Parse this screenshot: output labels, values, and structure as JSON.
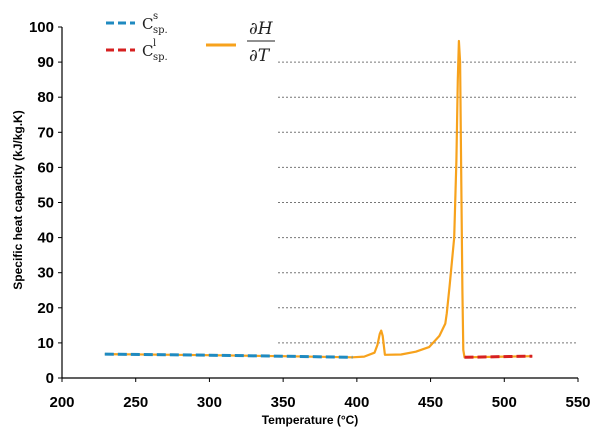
{
  "chart_data": {
    "type": "line",
    "title": "",
    "xlabel": "Temperature (°C)",
    "ylabel": "Specific heat capacity (kJ/kg.K)",
    "xlim": [
      200,
      550
    ],
    "ylim": [
      0,
      100
    ],
    "xticks": [
      200,
      250,
      300,
      350,
      400,
      450,
      500,
      550
    ],
    "yticks": [
      0,
      10,
      20,
      30,
      40,
      50,
      60,
      70,
      80,
      90,
      100
    ],
    "grid": "horizontal dotted at 10, 40, 50, 60, 70, 80, 90",
    "legend_position": "top-left",
    "series": [
      {
        "name": "Cs sp.",
        "legend": {
          "base": "C",
          "sup": "s",
          "sub": "sp."
        },
        "color": "#1f8ac0",
        "style": "dashed",
        "x": [
          229,
          300,
          350,
          397
        ],
        "y": [
          6.8,
          6.5,
          6.2,
          5.9
        ]
      },
      {
        "name": "Cl sp.",
        "legend": {
          "base": "C",
          "sup": "l",
          "sub": "sp."
        },
        "color": "#d62020",
        "style": "dashed",
        "x": [
          473,
          500,
          519
        ],
        "y": [
          5.9,
          6.1,
          6.2
        ]
      },
      {
        "name": "∂H/∂T",
        "legend": {
          "numerator": "∂H",
          "denominator": "∂T"
        },
        "color": "#f7a21c",
        "style": "solid",
        "x": [
          229,
          300,
          350,
          397,
          405,
          412,
          414,
          415.5,
          416.5,
          417.5,
          419,
          430,
          440,
          449,
          456,
          460,
          461,
          463,
          466,
          467.5,
          468.5,
          469.2,
          470,
          471,
          471.6,
          472.2,
          473,
          500,
          519
        ],
        "y": [
          6.8,
          6.5,
          6.2,
          5.9,
          6.1,
          7.2,
          9.5,
          12.5,
          13.5,
          12.0,
          6.6,
          6.7,
          7.5,
          8.8,
          12.0,
          15.5,
          18.5,
          26.5,
          40.0,
          62.0,
          85.0,
          96.0,
          90.0,
          50.0,
          25.0,
          8.0,
          5.9,
          6.1,
          6.2
        ]
      }
    ]
  }
}
